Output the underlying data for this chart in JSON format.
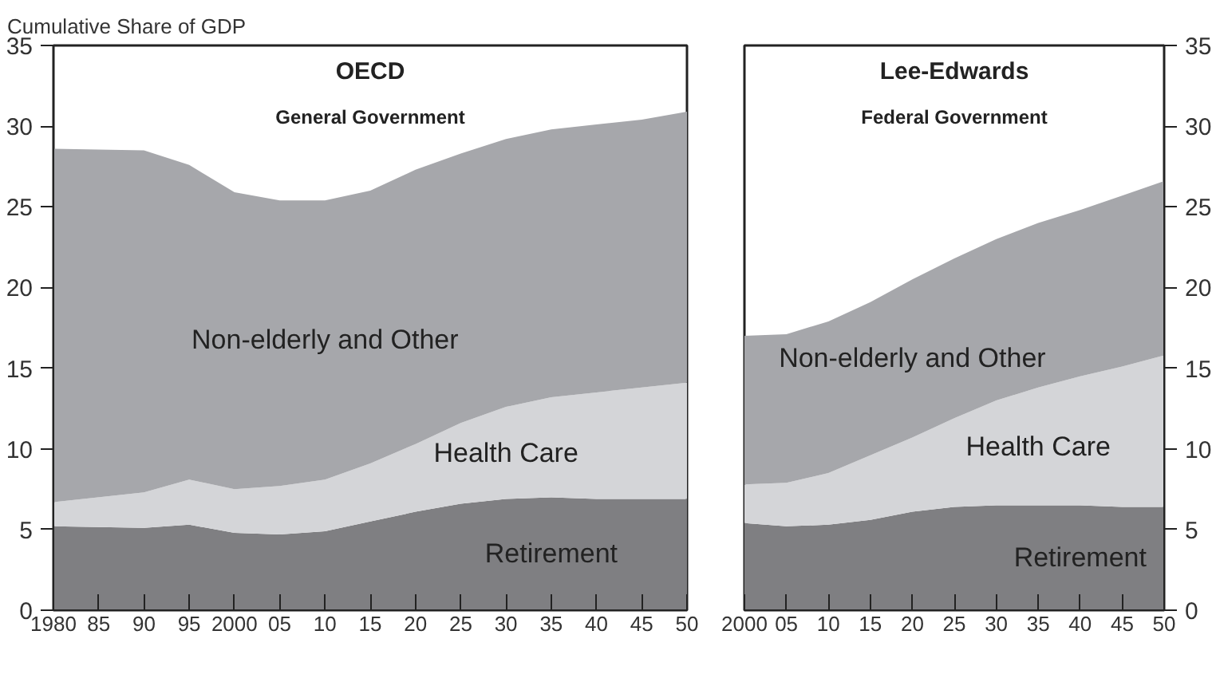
{
  "chart_data": [
    {
      "type": "area",
      "stacked": true,
      "title": "OECD",
      "subtitle": "General Government",
      "ylabel": "Cumulative Share of GDP",
      "x": [
        1980,
        1990,
        1995,
        2000,
        2005,
        2010,
        2015,
        2020,
        2025,
        2030,
        2035,
        2040,
        2045,
        2050
      ],
      "series": [
        {
          "name": "Retirement",
          "color": "#7f7f82",
          "values": [
            5.2,
            5.1,
            5.3,
            4.8,
            4.7,
            4.9,
            5.5,
            6.1,
            6.6,
            6.9,
            7.0,
            6.9,
            6.9,
            6.9
          ]
        },
        {
          "name": "Health Care",
          "color": "#d4d5d8",
          "values": [
            1.5,
            2.2,
            2.8,
            2.7,
            3.0,
            3.2,
            3.6,
            4.2,
            5.0,
            5.7,
            6.2,
            6.6,
            6.9,
            7.2
          ]
        },
        {
          "name": "Non-elderly and Other",
          "color": "#a6a7ab",
          "values": [
            21.9,
            21.2,
            19.5,
            18.4,
            17.7,
            17.3,
            16.9,
            17.0,
            16.7,
            16.6,
            16.6,
            16.6,
            16.6,
            16.8
          ]
        }
      ],
      "xlim": [
        1980,
        2050
      ],
      "ylim": [
        0,
        35
      ],
      "xticks": [
        {
          "value": 1980,
          "label": "1980"
        },
        {
          "value": 1985,
          "label": "85"
        },
        {
          "value": 1990,
          "label": "90"
        },
        {
          "value": 1995,
          "label": "95"
        },
        {
          "value": 2000,
          "label": "2000"
        },
        {
          "value": 2005,
          "label": "05"
        },
        {
          "value": 2010,
          "label": "10"
        },
        {
          "value": 2015,
          "label": "15"
        },
        {
          "value": 2020,
          "label": "20"
        },
        {
          "value": 2025,
          "label": "25"
        },
        {
          "value": 2030,
          "label": "30"
        },
        {
          "value": 2035,
          "label": "35"
        },
        {
          "value": 2040,
          "label": "40"
        },
        {
          "value": 2045,
          "label": "45"
        },
        {
          "value": 2050,
          "label": "50"
        }
      ],
      "yticks": [
        0,
        5,
        10,
        15,
        20,
        25,
        30,
        35
      ]
    },
    {
      "type": "area",
      "stacked": true,
      "title": "Lee-Edwards",
      "subtitle": "Federal Government",
      "x": [
        2000,
        2005,
        2010,
        2015,
        2020,
        2025,
        2030,
        2035,
        2040,
        2045,
        2050
      ],
      "series": [
        {
          "name": "Retirement",
          "color": "#7f7f82",
          "values": [
            5.4,
            5.2,
            5.3,
            5.6,
            6.1,
            6.4,
            6.5,
            6.5,
            6.5,
            6.4,
            6.4
          ]
        },
        {
          "name": "Health Care",
          "color": "#d4d5d8",
          "values": [
            2.4,
            2.7,
            3.2,
            4.0,
            4.6,
            5.5,
            6.5,
            7.3,
            8.0,
            8.7,
            9.4
          ]
        },
        {
          "name": "Non-elderly and Other",
          "color": "#a6a7ab",
          "values": [
            9.2,
            9.2,
            9.4,
            9.5,
            9.8,
            9.9,
            10.0,
            10.2,
            10.3,
            10.6,
            10.8
          ]
        }
      ],
      "xlim": [
        2000,
        2050
      ],
      "ylim": [
        0,
        35
      ],
      "xticks": [
        {
          "value": 2000,
          "label": "2000"
        },
        {
          "value": 2005,
          "label": "05"
        },
        {
          "value": 2010,
          "label": "10"
        },
        {
          "value": 2015,
          "label": "15"
        },
        {
          "value": 2020,
          "label": "20"
        },
        {
          "value": 2025,
          "label": "25"
        },
        {
          "value": 2030,
          "label": "30"
        },
        {
          "value": 2035,
          "label": "35"
        },
        {
          "value": 2040,
          "label": "40"
        },
        {
          "value": 2045,
          "label": "45"
        },
        {
          "value": 2050,
          "label": "50"
        }
      ],
      "yticks": [
        0,
        5,
        10,
        15,
        20,
        25,
        30,
        35
      ]
    }
  ]
}
